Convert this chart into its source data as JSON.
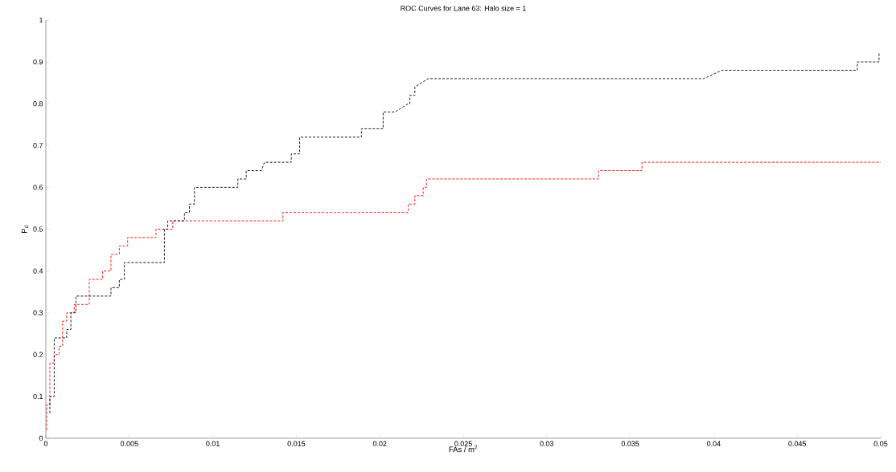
{
  "chart_data": {
    "type": "line",
    "title": "ROC Curves for Lane 63: Halo size = 1",
    "xlabel": "FAs / m$^{2}$",
    "ylabel": "P$_{d}$",
    "xlim": [
      0,
      0.05
    ],
    "xticks": [
      0,
      0.005,
      0.01,
      0.015,
      0.02,
      0.025,
      0.03,
      0.035,
      0.04,
      0.045,
      0.05
    ],
    "ylim": [
      0,
      1
    ],
    "yticks": [
      0,
      0.1,
      0.2,
      0.3,
      0.4,
      0.5,
      0.6,
      0.7,
      0.8,
      0.9,
      1
    ],
    "grid": false,
    "marker": "none",
    "line_style": "dashed",
    "series": [
      {
        "color": "#000000",
        "x": [
          0.00024,
          0.00024,
          0.0005,
          0.0005,
          0.00125,
          0.00125,
          0.0015,
          0.0015,
          0.0018,
          0.0018,
          0.0039,
          0.0039,
          0.0044,
          0.0044,
          0.0047,
          0.0047,
          0.0071,
          0.0071,
          0.0073,
          0.0073,
          0.0083,
          0.0083,
          0.0086,
          0.0086,
          0.0089,
          0.0089,
          0.0115,
          0.0115,
          0.012,
          0.012,
          0.0129,
          0.0131,
          0.0147,
          0.0147,
          0.0152,
          0.0152,
          0.0189,
          0.0189,
          0.0202,
          0.0202,
          0.0209,
          0.0217,
          0.0218,
          0.0218,
          0.0221,
          0.0221,
          0.0229,
          0.0394,
          0.0405,
          0.0486,
          0.0486,
          0.0499,
          0.0499
        ],
        "values": [
          0.06,
          0.1,
          0.1,
          0.24,
          0.24,
          0.26,
          0.26,
          0.3,
          0.3,
          0.34,
          0.34,
          0.36,
          0.36,
          0.38,
          0.38,
          0.42,
          0.42,
          0.5,
          0.5,
          0.52,
          0.52,
          0.54,
          0.54,
          0.56,
          0.56,
          0.6,
          0.6,
          0.62,
          0.62,
          0.64,
          0.64,
          0.66,
          0.66,
          0.68,
          0.68,
          0.72,
          0.72,
          0.74,
          0.74,
          0.78,
          0.78,
          0.8,
          0.8,
          0.82,
          0.82,
          0.84,
          0.86,
          0.86,
          0.88,
          0.88,
          0.9,
          0.9,
          0.92
        ]
      },
      {
        "color": "#ff0000",
        "x": [
          5e-05,
          5e-05,
          0.00024,
          0.00024,
          0.0005,
          0.0005,
          0.0008,
          0.0008,
          0.001,
          0.001,
          0.00125,
          0.00125,
          0.0017,
          0.0017,
          0.0026,
          0.0026,
          0.0034,
          0.0034,
          0.0039,
          0.0039,
          0.0044,
          0.0044,
          0.0049,
          0.0049,
          0.0066,
          0.0066,
          0.0076,
          0.0076,
          0.0142,
          0.0142,
          0.0217,
          0.0217,
          0.0221,
          0.0221,
          0.0226,
          0.0226,
          0.0228,
          0.0228,
          0.0331,
          0.0331,
          0.0357,
          0.0357,
          0.05
        ],
        "values": [
          0.02,
          0.08,
          0.08,
          0.18,
          0.18,
          0.2,
          0.2,
          0.22,
          0.22,
          0.28,
          0.28,
          0.3,
          0.3,
          0.32,
          0.32,
          0.38,
          0.38,
          0.4,
          0.4,
          0.44,
          0.44,
          0.46,
          0.46,
          0.48,
          0.48,
          0.5,
          0.5,
          0.52,
          0.52,
          0.54,
          0.54,
          0.56,
          0.56,
          0.58,
          0.58,
          0.6,
          0.6,
          0.62,
          0.62,
          0.64,
          0.64,
          0.66,
          0.66
        ]
      }
    ]
  }
}
